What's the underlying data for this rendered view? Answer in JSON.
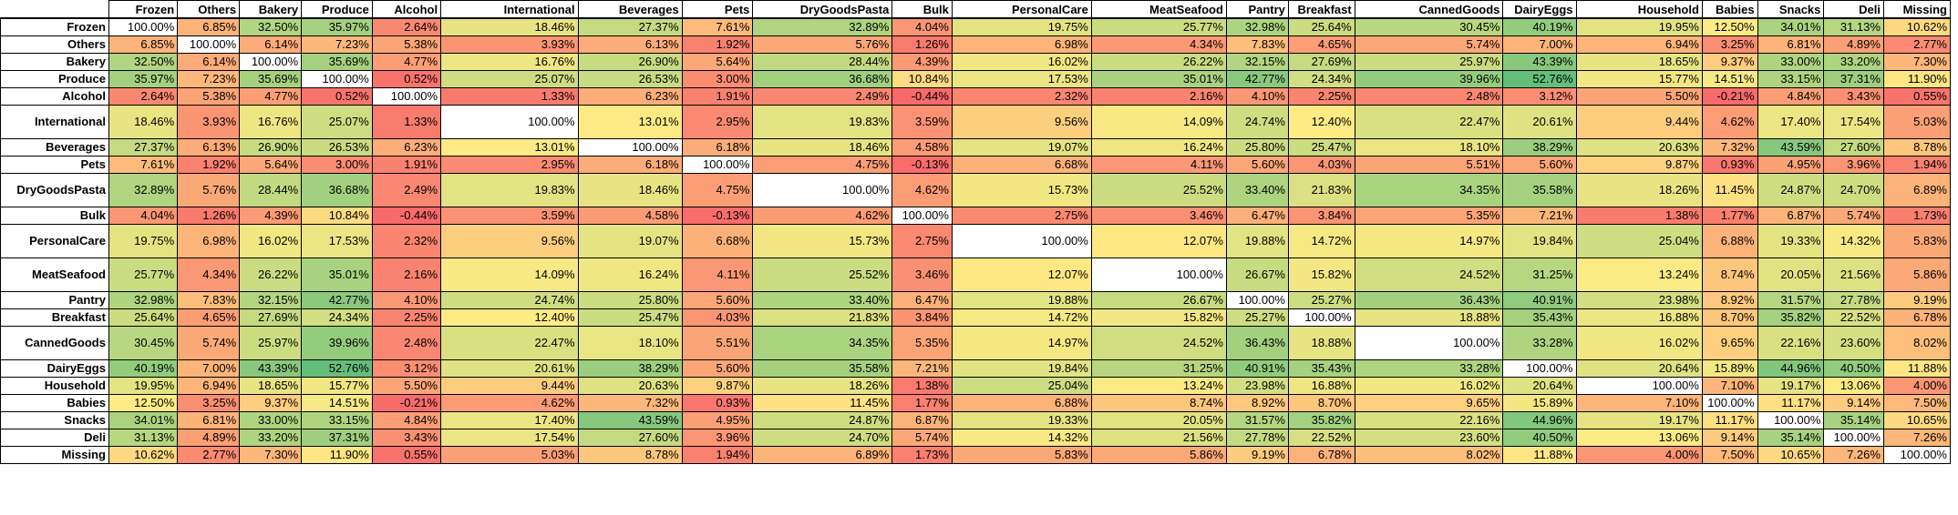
{
  "chart_data": {
    "type": "heatmap",
    "columns": [
      "Frozen",
      "Others",
      "Bakery",
      "Produce",
      "Alcohol",
      "International",
      "Beverages",
      "Pets",
      "DryGoodsPasta",
      "Bulk",
      "PersonalCare",
      "MeatSeafood",
      "Pantry",
      "Breakfast",
      "CannedGoods",
      "DairyEggs",
      "Household",
      "Babies",
      "Snacks",
      "Deli",
      "Missing"
    ],
    "rows": [
      {
        "label": "Frozen",
        "values": [
          "100.00%",
          "6.85%",
          "32.50%",
          "35.97%",
          "2.64%",
          "18.46%",
          "27.37%",
          "7.61%",
          "32.89%",
          "4.04%",
          "19.75%",
          "25.77%",
          "32.98%",
          "25.64%",
          "30.45%",
          "40.19%",
          "19.95%",
          "12.50%",
          "34.01%",
          "31.13%",
          "10.62%"
        ]
      },
      {
        "label": "Others",
        "values": [
          "6.85%",
          "100.00%",
          "6.14%",
          "7.23%",
          "5.38%",
          "3.93%",
          "6.13%",
          "1.92%",
          "5.76%",
          "1.26%",
          "6.98%",
          "4.34%",
          "7.83%",
          "4.65%",
          "5.74%",
          "7.00%",
          "6.94%",
          "3.25%",
          "6.81%",
          "4.89%",
          "2.77%"
        ]
      },
      {
        "label": "Bakery",
        "values": [
          "32.50%",
          "6.14%",
          "100.00%",
          "35.69%",
          "4.77%",
          "16.76%",
          "26.90%",
          "5.64%",
          "28.44%",
          "4.39%",
          "16.02%",
          "26.22%",
          "32.15%",
          "27.69%",
          "25.97%",
          "43.39%",
          "18.65%",
          "9.37%",
          "33.00%",
          "33.20%",
          "7.30%"
        ]
      },
      {
        "label": "Produce",
        "values": [
          "35.97%",
          "7.23%",
          "35.69%",
          "100.00%",
          "0.52%",
          "25.07%",
          "26.53%",
          "3.00%",
          "36.68%",
          "10.84%",
          "17.53%",
          "35.01%",
          "42.77%",
          "24.34%",
          "39.96%",
          "52.76%",
          "15.77%",
          "14.51%",
          "33.15%",
          "37.31%",
          "11.90%"
        ]
      },
      {
        "label": "Alcohol",
        "values": [
          "2.64%",
          "5.38%",
          "4.77%",
          "0.52%",
          "100.00%",
          "1.33%",
          "6.23%",
          "1.91%",
          "2.49%",
          "-0.44%",
          "2.32%",
          "2.16%",
          "4.10%",
          "2.25%",
          "2.48%",
          "3.12%",
          "5.50%",
          "-0.21%",
          "4.84%",
          "3.43%",
          "0.55%"
        ]
      },
      {
        "label": "International",
        "values": [
          "18.46%",
          "3.93%",
          "16.76%",
          "25.07%",
          "1.33%",
          "100.00%",
          "13.01%",
          "2.95%",
          "19.83%",
          "3.59%",
          "9.56%",
          "14.09%",
          "24.74%",
          "12.40%",
          "22.47%",
          "20.61%",
          "9.44%",
          "4.62%",
          "17.40%",
          "17.54%",
          "5.03%"
        ]
      },
      {
        "label": "Beverages",
        "values": [
          "27.37%",
          "6.13%",
          "26.90%",
          "26.53%",
          "6.23%",
          "13.01%",
          "100.00%",
          "6.18%",
          "18.46%",
          "4.58%",
          "19.07%",
          "16.24%",
          "25.80%",
          "25.47%",
          "18.10%",
          "38.29%",
          "20.63%",
          "7.32%",
          "43.59%",
          "27.60%",
          "8.78%"
        ]
      },
      {
        "label": "Pets",
        "values": [
          "7.61%",
          "1.92%",
          "5.64%",
          "3.00%",
          "1.91%",
          "2.95%",
          "6.18%",
          "100.00%",
          "4.75%",
          "-0.13%",
          "6.68%",
          "4.11%",
          "5.60%",
          "4.03%",
          "5.51%",
          "5.60%",
          "9.87%",
          "0.93%",
          "4.95%",
          "3.96%",
          "1.94%"
        ]
      },
      {
        "label": "DryGoodsPasta",
        "values": [
          "32.89%",
          "5.76%",
          "28.44%",
          "36.68%",
          "2.49%",
          "19.83%",
          "18.46%",
          "4.75%",
          "100.00%",
          "4.62%",
          "15.73%",
          "25.52%",
          "33.40%",
          "21.83%",
          "34.35%",
          "35.58%",
          "18.26%",
          "11.45%",
          "24.87%",
          "24.70%",
          "6.89%"
        ]
      },
      {
        "label": "Bulk",
        "values": [
          "4.04%",
          "1.26%",
          "4.39%",
          "10.84%",
          "-0.44%",
          "3.59%",
          "4.58%",
          "-0.13%",
          "4.62%",
          "100.00%",
          "2.75%",
          "3.46%",
          "6.47%",
          "3.84%",
          "5.35%",
          "7.21%",
          "1.38%",
          "1.77%",
          "6.87%",
          "5.74%",
          "1.73%"
        ]
      },
      {
        "label": "PersonalCare",
        "values": [
          "19.75%",
          "6.98%",
          "16.02%",
          "17.53%",
          "2.32%",
          "9.56%",
          "19.07%",
          "6.68%",
          "15.73%",
          "2.75%",
          "100.00%",
          "12.07%",
          "19.88%",
          "14.72%",
          "14.97%",
          "19.84%",
          "25.04%",
          "6.88%",
          "19.33%",
          "14.32%",
          "5.83%"
        ]
      },
      {
        "label": "MeatSeafood",
        "values": [
          "25.77%",
          "4.34%",
          "26.22%",
          "35.01%",
          "2.16%",
          "14.09%",
          "16.24%",
          "4.11%",
          "25.52%",
          "3.46%",
          "12.07%",
          "100.00%",
          "26.67%",
          "15.82%",
          "24.52%",
          "31.25%",
          "13.24%",
          "8.74%",
          "20.05%",
          "21.56%",
          "5.86%"
        ]
      },
      {
        "label": "Pantry",
        "values": [
          "32.98%",
          "7.83%",
          "32.15%",
          "42.77%",
          "4.10%",
          "24.74%",
          "25.80%",
          "5.60%",
          "33.40%",
          "6.47%",
          "19.88%",
          "26.67%",
          "100.00%",
          "25.27%",
          "36.43%",
          "40.91%",
          "23.98%",
          "8.92%",
          "31.57%",
          "27.78%",
          "9.19%"
        ]
      },
      {
        "label": "Breakfast",
        "values": [
          "25.64%",
          "4.65%",
          "27.69%",
          "24.34%",
          "2.25%",
          "12.40%",
          "25.47%",
          "4.03%",
          "21.83%",
          "3.84%",
          "14.72%",
          "15.82%",
          "25.27%",
          "100.00%",
          "18.88%",
          "35.43%",
          "16.88%",
          "8.70%",
          "35.82%",
          "22.52%",
          "6.78%"
        ]
      },
      {
        "label": "CannedGoods",
        "values": [
          "30.45%",
          "5.74%",
          "25.97%",
          "39.96%",
          "2.48%",
          "22.47%",
          "18.10%",
          "5.51%",
          "34.35%",
          "5.35%",
          "14.97%",
          "24.52%",
          "36.43%",
          "18.88%",
          "100.00%",
          "33.28%",
          "16.02%",
          "9.65%",
          "22.16%",
          "23.60%",
          "8.02%"
        ]
      },
      {
        "label": "DairyEggs",
        "values": [
          "40.19%",
          "7.00%",
          "43.39%",
          "52.76%",
          "3.12%",
          "20.61%",
          "38.29%",
          "5.60%",
          "35.58%",
          "7.21%",
          "19.84%",
          "31.25%",
          "40.91%",
          "35.43%",
          "33.28%",
          "100.00%",
          "20.64%",
          "15.89%",
          "44.96%",
          "40.50%",
          "11.88%"
        ]
      },
      {
        "label": "Household",
        "values": [
          "19.95%",
          "6.94%",
          "18.65%",
          "15.77%",
          "5.50%",
          "9.44%",
          "20.63%",
          "9.87%",
          "18.26%",
          "1.38%",
          "25.04%",
          "13.24%",
          "23.98%",
          "16.88%",
          "16.02%",
          "20.64%",
          "100.00%",
          "7.10%",
          "19.17%",
          "13.06%",
          "4.00%"
        ]
      },
      {
        "label": "Babies",
        "values": [
          "12.50%",
          "3.25%",
          "9.37%",
          "14.51%",
          "-0.21%",
          "4.62%",
          "7.32%",
          "0.93%",
          "11.45%",
          "1.77%",
          "6.88%",
          "8.74%",
          "8.92%",
          "8.70%",
          "9.65%",
          "15.89%",
          "7.10%",
          "100.00%",
          "11.17%",
          "9.14%",
          "7.50%"
        ]
      },
      {
        "label": "Snacks",
        "values": [
          "34.01%",
          "6.81%",
          "33.00%",
          "33.15%",
          "4.84%",
          "17.40%",
          "43.59%",
          "4.95%",
          "24.87%",
          "6.87%",
          "19.33%",
          "20.05%",
          "31.57%",
          "35.82%",
          "22.16%",
          "44.96%",
          "19.17%",
          "11.17%",
          "100.00%",
          "35.14%",
          "10.65%"
        ]
      },
      {
        "label": "Deli",
        "values": [
          "31.13%",
          "4.89%",
          "33.20%",
          "37.31%",
          "3.43%",
          "17.54%",
          "27.60%",
          "3.96%",
          "24.70%",
          "5.74%",
          "14.32%",
          "21.56%",
          "27.78%",
          "22.52%",
          "23.60%",
          "40.50%",
          "13.06%",
          "9.14%",
          "35.14%",
          "100.00%",
          "7.26%"
        ]
      },
      {
        "label": "Missing",
        "values": [
          "10.62%",
          "2.77%",
          "7.30%",
          "11.90%",
          "0.55%",
          "5.03%",
          "8.78%",
          "1.94%",
          "6.89%",
          "1.73%",
          "5.83%",
          "5.86%",
          "9.19%",
          "6.78%",
          "8.02%",
          "11.88%",
          "4.00%",
          "7.50%",
          "10.65%",
          "7.26%",
          "100.00%"
        ]
      }
    ],
    "color_scale": {
      "low": "#f8696b",
      "mid": "#ffeb84",
      "high": "#63be7b",
      "diagonal": "#ffffff"
    }
  }
}
